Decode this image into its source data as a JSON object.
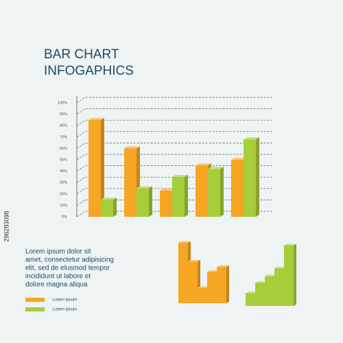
{
  "header": {
    "title": [
      "BAR CHART",
      "INFOGAPHICS"
    ]
  },
  "description": [
    "Lorem ipsum dolor sit",
    "amet, consectetur adipisicing",
    "elit, sed de elusmod tempor",
    "incididunt ut labore et",
    "dolore magna aliqua"
  ],
  "watermark_id": "296283098",
  "chart_data": [
    {
      "type": "bar3d",
      "categories": [
        null,
        null,
        null,
        null,
        null
      ],
      "series": [
        {
          "name": "Lorem Ipsum",
          "color": "#f5a623",
          "values": [
            85,
            60,
            23,
            45,
            50
          ]
        },
        {
          "name": "Lorem Ipsum",
          "color": "#a6cd3a",
          "values": [
            15,
            25,
            35,
            42,
            68
          ]
        }
      ],
      "ylim": [
        0,
        100
      ],
      "yticks": [
        {
          "value": 0,
          "label": "0%"
        },
        {
          "value": 10,
          "label": "10%"
        },
        {
          "value": 20,
          "label": "20%"
        },
        {
          "value": 30,
          "label": "30%"
        },
        {
          "value": 40,
          "label": "40%"
        },
        {
          "value": 50,
          "label": "50%"
        },
        {
          "value": 60,
          "label": "60%"
        },
        {
          "value": 70,
          "label": "70%"
        },
        {
          "value": 80,
          "label": "80%"
        },
        {
          "value": 90,
          "label": "90%"
        },
        {
          "value": 100,
          "label": "100%"
        }
      ],
      "grid": true
    },
    {
      "type": "bar3d-mini",
      "values": [
        100,
        69,
        25,
        52,
        60
      ],
      "color": "#f5a623",
      "ylim": [
        0,
        100
      ]
    },
    {
      "type": "bar3d-mini",
      "values": [
        21,
        38,
        49,
        62,
        100
      ],
      "color": "#a6cd3a",
      "ylim": [
        0,
        100
      ]
    }
  ]
}
